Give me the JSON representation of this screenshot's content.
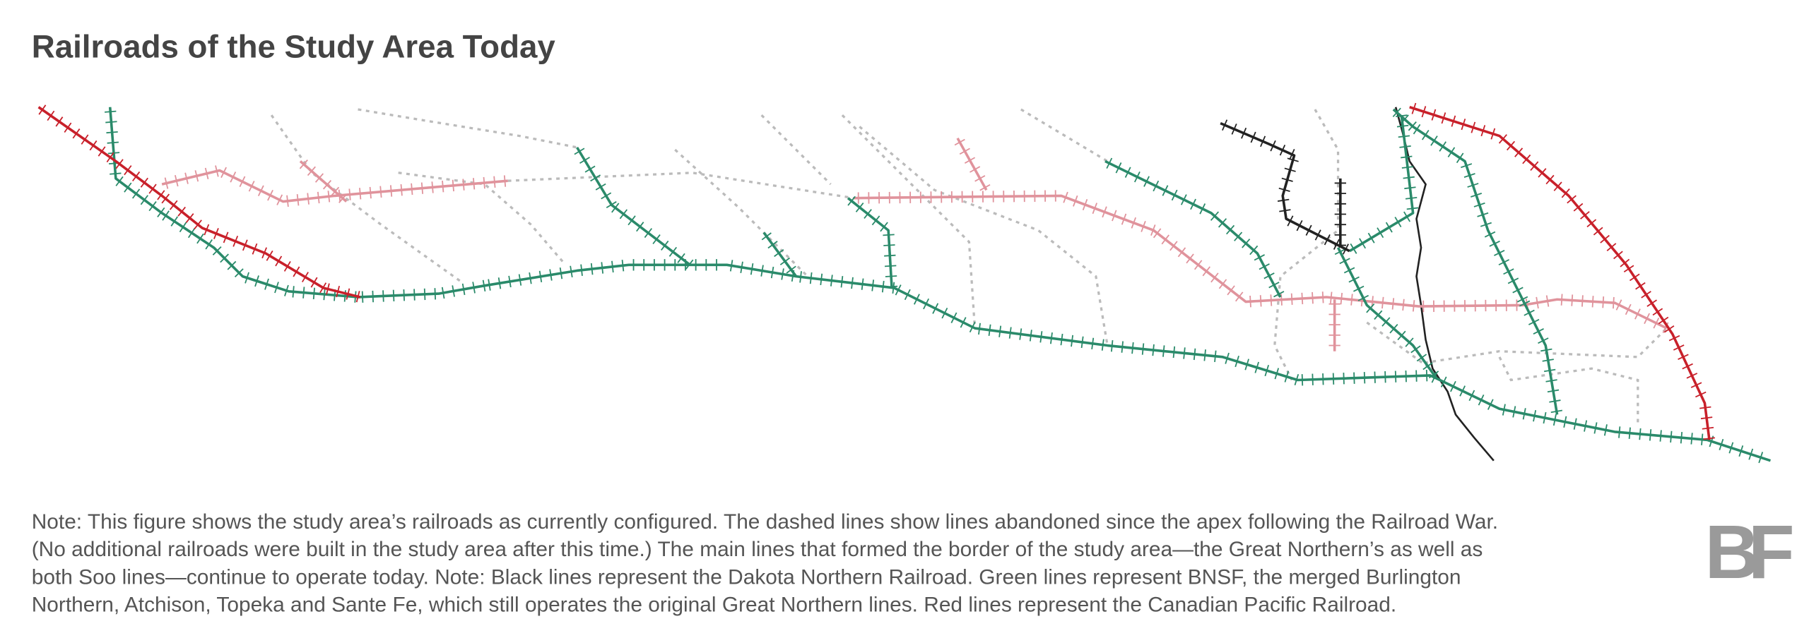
{
  "header": {
    "title": "Railroads of the Study Area Today"
  },
  "note": {
    "lines": [
      "Note: This figure shows the study area’s railroads as currently configured. The dashed lines show lines abandoned since the apex following the Railroad War.",
      "(No additional railroads were built in the study area after this time.) The main lines that formed the border of the study area—the Great Northern’s as well as",
      "both Soo lines—continue to operate today. Note: Black lines represent the Dakota Northern Railroad. Green lines represent BNSF, the merged Burlington",
      "Northern, Atchison, Topeka and Sante Fe, which still operates the original Great Northern lines. Red lines represent the Canadian Pacific Railroad."
    ]
  },
  "logo": "BF"
}
